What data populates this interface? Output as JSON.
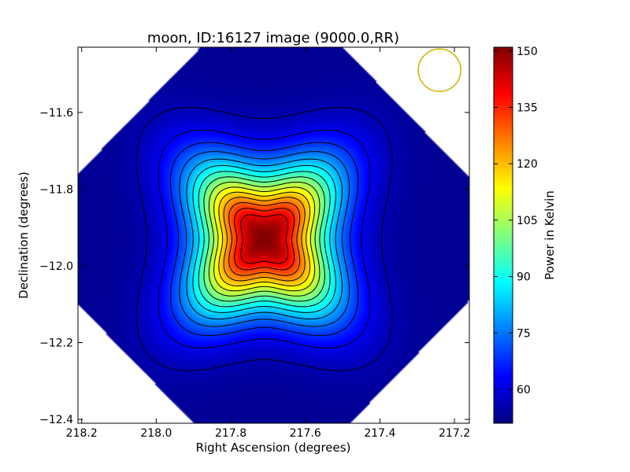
{
  "chart_data": {
    "type": "heatmap",
    "title": "moon, ID:16127 image (9000.0,RR)",
    "xlabel": "Right Ascension (degrees)",
    "ylabel": "Declination (degrees)",
    "colorbar_label": "Power in Kelvin",
    "xlim": [
      218.21,
      217.16
    ],
    "ylim": [
      -12.41,
      -11.43
    ],
    "x_ticks": [
      {
        "value": 218.2,
        "label": "218.2"
      },
      {
        "value": 218.0,
        "label": "218.0"
      },
      {
        "value": 217.8,
        "label": "217.8"
      },
      {
        "value": 217.6,
        "label": "217.6"
      },
      {
        "value": 217.4,
        "label": "217.4"
      },
      {
        "value": 217.2,
        "label": "217.2"
      }
    ],
    "y_ticks": [
      {
        "value": -11.6,
        "label": "−11.6"
      },
      {
        "value": -11.8,
        "label": "−11.8"
      },
      {
        "value": -12.0,
        "label": "−12.0"
      },
      {
        "value": -12.2,
        "label": "−12.2"
      },
      {
        "value": -12.4,
        "label": "−12.4"
      }
    ],
    "colorbar": {
      "min": 51,
      "max": 151,
      "ticks": [
        60,
        75,
        90,
        105,
        120,
        135,
        150
      ],
      "colormap": "jet"
    },
    "source": {
      "ra": 217.71,
      "dec": -11.93,
      "peak": 151,
      "base": 53
    },
    "contour_levels": [
      56,
      62,
      68,
      74,
      80,
      86,
      92,
      98,
      104,
      110,
      116,
      122,
      128,
      134,
      140
    ],
    "map_background": 51,
    "beam_marker": {
      "ra": 217.24,
      "dec": -11.49,
      "color": "#c8b400"
    },
    "grid": false
  }
}
